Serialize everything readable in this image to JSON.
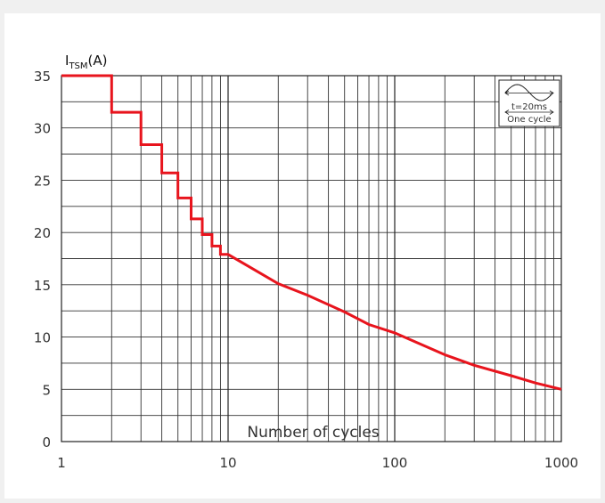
{
  "chart_data": {
    "type": "line",
    "y_axis_label": {
      "main": "I",
      "subscript": "TSM",
      "unit": "(A)"
    },
    "x_axis_label": "Number of cycles",
    "x_scale": "log",
    "xlim": [
      1,
      1000
    ],
    "ylim": [
      0,
      35
    ],
    "x_ticks": [
      "1",
      "10",
      "100",
      "1000"
    ],
    "y_ticks": [
      "0",
      "5",
      "10",
      "15",
      "20",
      "25",
      "30",
      "35"
    ],
    "grid": true,
    "line_color": "#e8141d",
    "series": [
      {
        "step_x": [
          1,
          2,
          2,
          3,
          3,
          4,
          4,
          5,
          5,
          6,
          6,
          7,
          7,
          8,
          8,
          9,
          9,
          10
        ],
        "step_y": [
          35,
          35,
          31.5,
          31.5,
          28.4,
          28.4,
          25.7,
          25.7,
          23.3,
          23.3,
          21.3,
          21.3,
          19.8,
          19.8,
          18.7,
          18.7,
          17.9,
          17.9
        ],
        "curve_x": [
          10,
          20,
          30,
          50,
          70,
          100,
          200,
          300,
          500,
          700,
          1000
        ],
        "curve_y": [
          17.9,
          15.1,
          14.0,
          12.4,
          11.2,
          10.4,
          8.3,
          7.3,
          6.3,
          5.6,
          5.0
        ]
      }
    ],
    "inset": {
      "period_label": "t=20ms",
      "caption": "One  cycle"
    }
  }
}
